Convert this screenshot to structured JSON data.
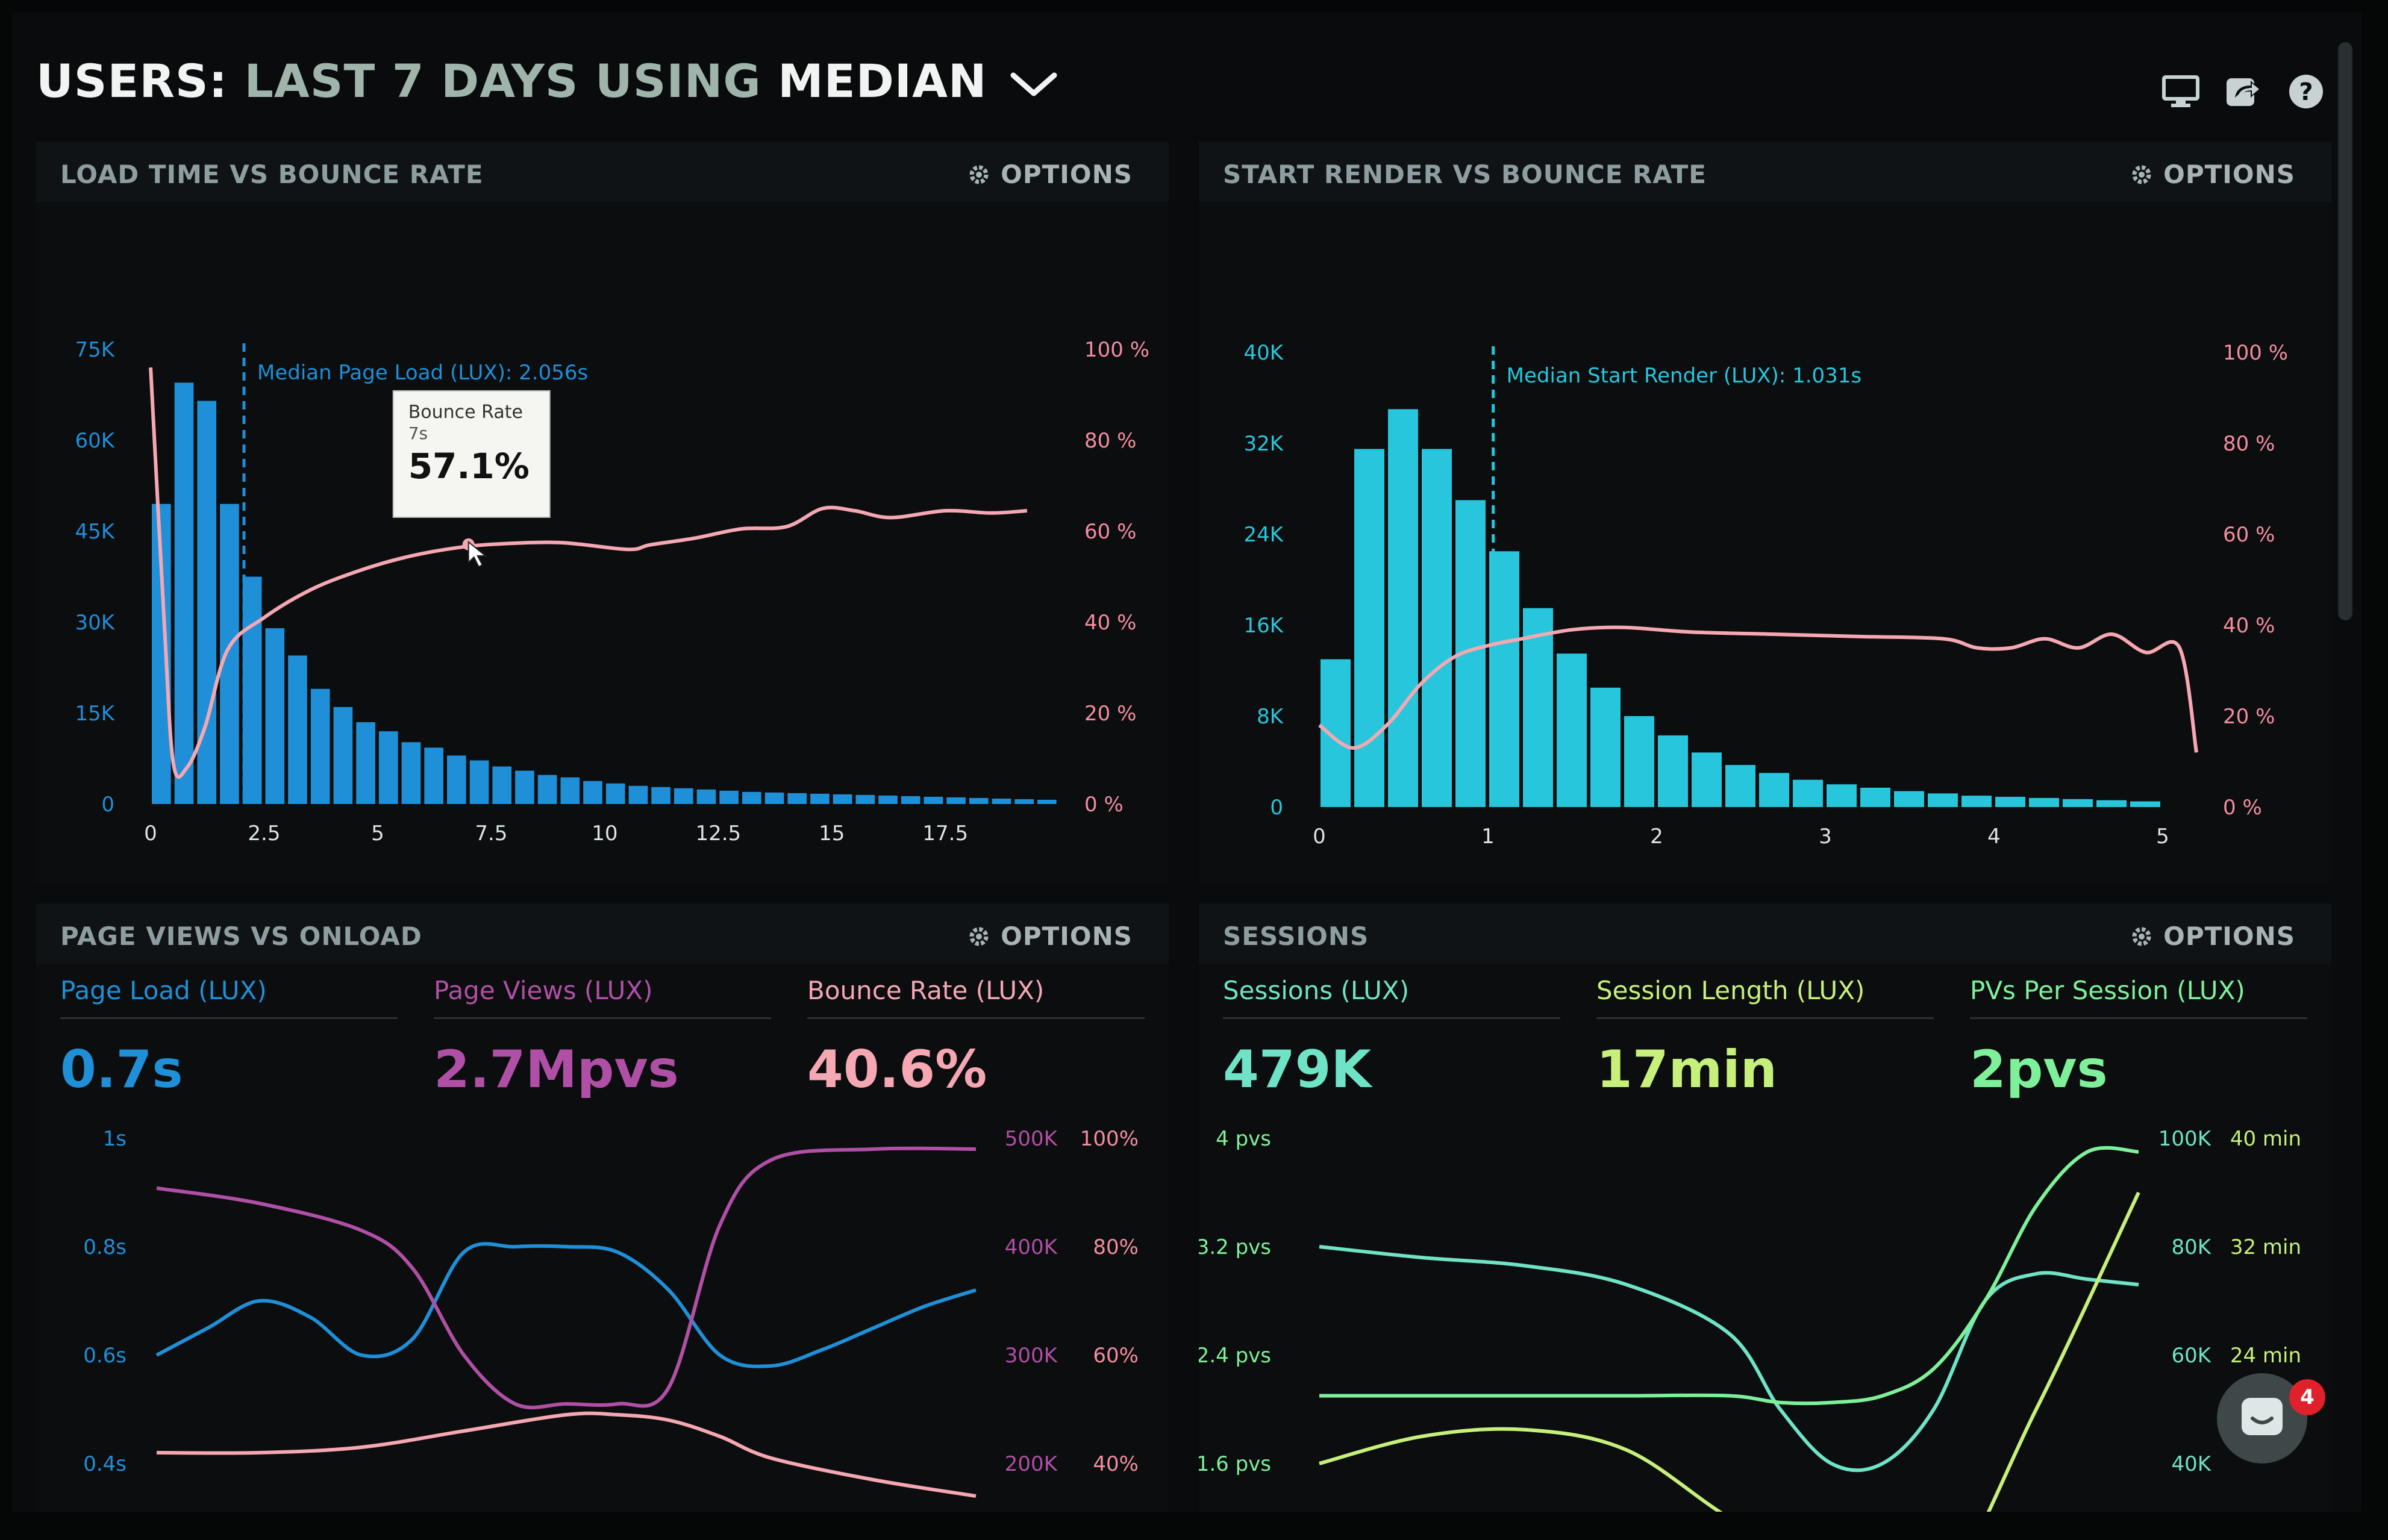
{
  "header": {
    "title_prefix": "USERS:",
    "title_range": "LAST 7 DAYS",
    "title_using": "USING",
    "title_method": "MEDIAN",
    "icons": [
      "monitor-icon",
      "share-icon",
      "help-icon"
    ]
  },
  "panels": {
    "load_time": {
      "title": "LOAD TIME VS BOUNCE RATE",
      "options_label": "OPTIONS"
    },
    "start_render": {
      "title": "START RENDER VS BOUNCE RATE",
      "options_label": "OPTIONS"
    },
    "page_views": {
      "title": "PAGE VIEWS VS ONLOAD",
      "options_label": "OPTIONS"
    },
    "sessions": {
      "title": "SESSIONS",
      "options_label": "OPTIONS"
    }
  },
  "metrics": {
    "page_load": {
      "label": "Page Load (LUX)",
      "value": "0.7s",
      "color": "#1f8fd8"
    },
    "page_views": {
      "label": "Page Views (LUX)",
      "value": "2.7Mpvs",
      "color": "#b04fa6"
    },
    "bounce_rate": {
      "label": "Bounce Rate (LUX)",
      "value": "40.6%",
      "color": "#f5a7b2"
    },
    "sessions": {
      "label": "Sessions (LUX)",
      "value": "479K",
      "color": "#6fe3c6"
    },
    "session_length": {
      "label": "Session Length (LUX)",
      "value": "17min",
      "color": "#c6f07a"
    },
    "pvs_per_session": {
      "label": "PVs Per Session (LUX)",
      "value": "2pvs",
      "color": "#7ef09a"
    }
  },
  "tooltip": {
    "label": "Bounce Rate",
    "x": "7s",
    "value": "57.1%"
  },
  "chat": {
    "badge_count": "4"
  },
  "chart_data": [
    {
      "type": "bar",
      "panel": "LOAD TIME VS BOUNCE RATE",
      "x_ticks": [
        "0",
        "2.5",
        "5",
        "7.5",
        "10",
        "12.5",
        "15",
        "17.5"
      ],
      "y_ticks_left": [
        "0",
        "15K",
        "30K",
        "45K",
        "60K",
        "75K"
      ],
      "y_ticks_right": [
        "0 %",
        "20 %",
        "40 %",
        "60 %",
        "80 %",
        "100 %"
      ],
      "xlim": [
        0,
        19.5
      ],
      "ylim": [
        0,
        75000
      ],
      "y2lim": [
        0,
        100
      ],
      "annotation": "Median Page Load (LUX): 2.056s",
      "median_x": 2.056,
      "bar_color": "#1f8fd8",
      "line_color": "#f5a7b2",
      "legend": [
        "Page Load (LUX)",
        "Bounce Rate"
      ],
      "series": [
        {
          "name": "Page Load (LUX)",
          "kind": "bar",
          "x_step": 0.5,
          "values": [
            49500,
            69500,
            66500,
            49500,
            37500,
            29000,
            24500,
            19000,
            16000,
            13500,
            12000,
            10200,
            9300,
            8000,
            7200,
            6200,
            5500,
            4800,
            4400,
            3800,
            3400,
            3000,
            2800,
            2600,
            2400,
            2200,
            2000,
            1900,
            1800,
            1700,
            1600,
            1500,
            1400,
            1300,
            1200,
            1100,
            1000,
            900,
            800,
            700
          ]
        },
        {
          "name": "Bounce Rate",
          "kind": "line",
          "x": [
            0,
            0.3,
            0.5,
            0.8,
            1.2,
            1.7,
            2.5,
            3.5,
            4.5,
            5.5,
            6.5,
            7.5,
            9,
            10.5,
            11,
            12,
            13,
            14,
            14.8,
            15.5,
            16.3,
            17.5,
            18.5,
            19.3
          ],
          "y": [
            96,
            40,
            9,
            8,
            17,
            34,
            41,
            47,
            51,
            54,
            56,
            57.1,
            57.5,
            56,
            57,
            58.5,
            60.5,
            61,
            65,
            64.5,
            63,
            64.5,
            64,
            64.5
          ]
        }
      ]
    },
    {
      "type": "bar",
      "panel": "START RENDER VS BOUNCE RATE",
      "x_ticks": [
        "0",
        "1",
        "2",
        "3",
        "4",
        "5"
      ],
      "y_ticks_left": [
        "0",
        "8K",
        "16K",
        "24K",
        "32K",
        "40K"
      ],
      "y_ticks_right": [
        "0 %",
        "20 %",
        "40 %",
        "60 %",
        "80 %",
        "100 %"
      ],
      "xlim": [
        0,
        5
      ],
      "ylim": [
        0,
        40000
      ],
      "y2lim": [
        0,
        100
      ],
      "annotation": "Median Start Render (LUX): 1.031s",
      "median_x": 1.031,
      "bar_color": "#27c6dc",
      "line_color": "#f5a7b2",
      "legend": [
        "Start Render (LUX)",
        "Bounce Rate"
      ],
      "series": [
        {
          "name": "Start Render (LUX)",
          "kind": "bar",
          "x_step": 0.2,
          "values": [
            13000,
            31500,
            35000,
            31500,
            27000,
            22500,
            17500,
            13500,
            10500,
            8000,
            6300,
            4800,
            3700,
            3000,
            2400,
            2000,
            1700,
            1400,
            1200,
            1000,
            900,
            800,
            700,
            600,
            500
          ]
        },
        {
          "name": "Bounce Rate",
          "kind": "line",
          "x": [
            0,
            0.2,
            0.4,
            0.6,
            0.8,
            1.0,
            1.2,
            1.5,
            1.8,
            2.2,
            2.7,
            3.2,
            3.7,
            3.9,
            4.1,
            4.3,
            4.5,
            4.7,
            4.9,
            5.1,
            5.2
          ],
          "y": [
            18,
            13,
            18,
            27,
            33,
            35.5,
            37,
            39,
            39.5,
            38.5,
            38,
            37.5,
            37,
            35,
            35,
            37,
            35,
            38,
            34,
            35,
            12
          ]
        }
      ]
    },
    {
      "type": "line",
      "panel": "PAGE VIEWS VS ONLOAD",
      "y_ticks_left": [
        "0.4s",
        "0.6s",
        "0.8s",
        "1s"
      ],
      "y_ticks_mid": [
        "200K",
        "300K",
        "400K",
        "500K"
      ],
      "y_ticks_right": [
        "40%",
        "60%",
        "80%",
        "100%"
      ],
      "ylim": [
        0.4,
        1.0
      ],
      "y2lim": [
        200000,
        500000
      ],
      "y3lim": [
        40,
        100
      ],
      "series": [
        {
          "name": "Page Load (LUX)",
          "color": "#1f8fd8",
          "axis": "left",
          "x": [
            0,
            1,
            2,
            3,
            4,
            5,
            6,
            7,
            8,
            9,
            10,
            11,
            12,
            13,
            14,
            15,
            16
          ],
          "y": [
            0.6,
            0.65,
            0.7,
            0.67,
            0.6,
            0.63,
            0.79,
            0.8,
            0.8,
            0.79,
            0.72,
            0.6,
            0.58,
            0.61,
            0.65,
            0.69,
            0.72
          ]
        },
        {
          "name": "Page Views (LUX)",
          "color": "#b04fa6",
          "axis": "mid",
          "x": [
            0,
            2,
            4,
            5,
            6,
            7,
            8,
            9,
            10,
            11,
            12,
            14,
            16
          ],
          "y": [
            454000,
            440000,
            415000,
            380000,
            300000,
            255000,
            255000,
            255000,
            270000,
            420000,
            480000,
            490000,
            490000
          ]
        },
        {
          "name": "Bounce Rate (LUX)",
          "color": "#f5a7b2",
          "axis": "right",
          "x": [
            0,
            2,
            4,
            6,
            8,
            9,
            10,
            11,
            12,
            14,
            16
          ],
          "y": [
            42,
            42,
            43,
            46,
            49,
            49,
            48,
            45,
            41,
            37,
            34
          ]
        }
      ]
    },
    {
      "type": "line",
      "panel": "SESSIONS",
      "y_ticks_left": [
        "1.6 pvs",
        "2.4 pvs",
        "3.2 pvs",
        "4 pvs"
      ],
      "y_ticks_mid": [
        "40K",
        "60K",
        "80K",
        "100K"
      ],
      "y_ticks_right": [
        "24 min",
        "32 min",
        "40 min"
      ],
      "ylim": [
        1.6,
        4.0
      ],
      "y2lim": [
        40000,
        100000
      ],
      "y3lim": [
        16,
        40
      ],
      "series": [
        {
          "name": "Sessions (LUX)",
          "color": "#6fe3c6",
          "axis": "mid",
          "x": [
            0,
            2,
            4,
            6,
            8,
            9,
            10,
            11,
            12,
            13,
            14,
            15,
            16
          ],
          "y": [
            80000,
            78000,
            76500,
            73000,
            64000,
            50000,
            40000,
            40000,
            50000,
            70000,
            75000,
            74000,
            73000
          ]
        },
        {
          "name": "Session Length (LUX)",
          "color": "#c6f07a",
          "axis": "right",
          "x": [
            0,
            2,
            4,
            6,
            8,
            10,
            12,
            14,
            16
          ],
          "y": [
            16,
            18,
            18.5,
            17,
            12,
            8,
            6,
            20,
            36
          ]
        },
        {
          "name": "PVs Per Session (LUX)",
          "color": "#7ef09a",
          "axis": "left",
          "x": [
            0,
            2,
            4,
            6,
            8,
            9,
            10,
            11,
            12,
            13,
            14,
            15,
            16
          ],
          "y": [
            2.1,
            2.1,
            2.1,
            2.1,
            2.1,
            2.05,
            2.05,
            2.1,
            2.3,
            2.8,
            3.5,
            3.9,
            3.9
          ]
        }
      ]
    }
  ]
}
